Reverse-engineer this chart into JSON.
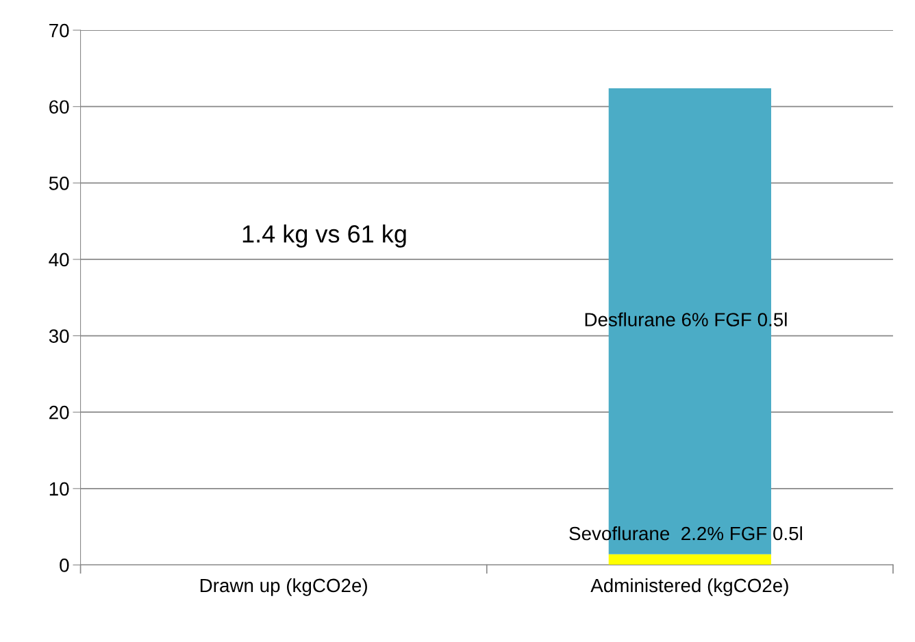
{
  "chart_data": {
    "type": "bar",
    "stacked": true,
    "categories": [
      "Drawn up (kgCO2e)",
      "Administered (kgCO2e)"
    ],
    "series": [
      {
        "name": "Sevoflurane  2.2% FGF 0.5l",
        "color": "#ffff00",
        "values": [
          null,
          1.4
        ]
      },
      {
        "name": "Desflurane 6% FGF 0.5l",
        "color": "#4bacc6",
        "values": [
          null,
          61
        ]
      }
    ],
    "ylim": [
      0,
      70
    ],
    "yticks": [
      0,
      10,
      20,
      30,
      40,
      50,
      60,
      70
    ],
    "grid": "y",
    "annotations": [
      "1.4 kg vs 61 kg"
    ]
  }
}
